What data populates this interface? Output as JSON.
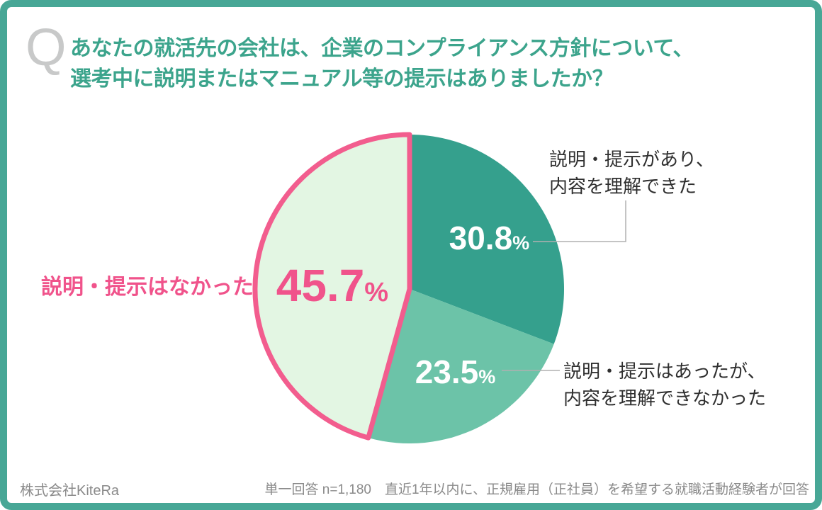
{
  "header": {
    "q_mark": "Q",
    "question_lines": [
      "あなたの就活先の会社は、企業のコンプライアンス方針について、",
      "選考中に説明またはマニュアル等の提示はありましたか？"
    ]
  },
  "chart_data": {
    "type": "pie",
    "unit": "%",
    "start_angle_deg": 0,
    "direction": "clockwise",
    "total": 100,
    "slices": [
      {
        "label": "説明・提示があり、内容を理解できた",
        "label_lines": [
          "説明・提示があり、",
          "内容を理解できた"
        ],
        "value": 30.8,
        "color": "#35a08d",
        "value_color": "#ffffff"
      },
      {
        "label": "説明・提示はあったが、内容を理解できなかった",
        "label_lines": [
          "説明・提示はあったが、",
          "内容を理解できなかった"
        ],
        "value": 23.5,
        "color": "#6cc3a8",
        "value_color": "#ffffff"
      },
      {
        "label": "説明・提示はなかった",
        "label_lines": [
          "説明・提示はなかった"
        ],
        "value": 45.7,
        "color": "#e3f6e3",
        "value_color": "#f0538b",
        "stroke_color": "#f25d8e"
      }
    ]
  },
  "footer": {
    "company": "株式会社KiteRa",
    "note": "単一回答 n=1,180　直近1年以内に、正規雇用（正社員）を希望する就職活動経験者が回答"
  },
  "colors": {
    "frame": "#48a796",
    "title_teal": "#3ca48c",
    "accent_pink": "#f0538b",
    "label_text": "#2f2f2f",
    "callout_line": "#b0b0b0",
    "footer_text": "#8a8a8a",
    "q_mark": "#c8c9c9"
  }
}
